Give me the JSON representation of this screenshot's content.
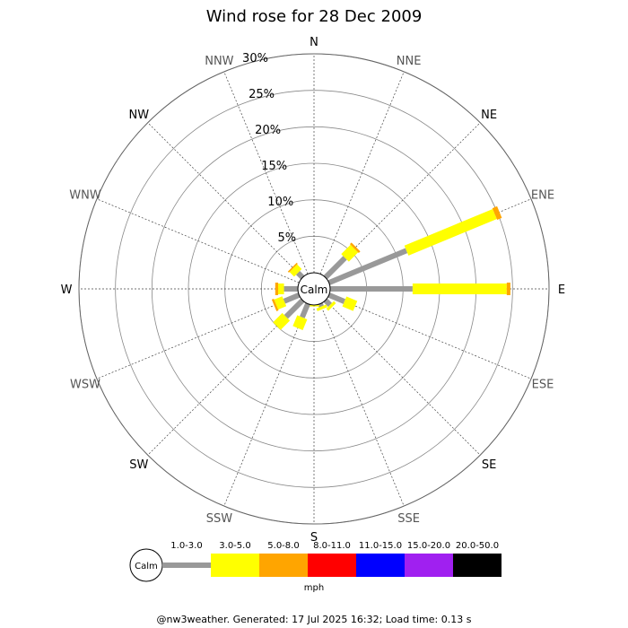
{
  "chart_data": {
    "type": "wind-rose",
    "title": "Wind rose for 28 Dec 2009",
    "center_label": "Calm",
    "unit": "mph",
    "footer": "@nw3weather. Generated: 17 Jul 2025 16:32; Load time: 0.13 s",
    "radial_max": 30,
    "radial_ticks": [
      5,
      10,
      15,
      20,
      25,
      30
    ],
    "radial_tick_labels": [
      "5%",
      "10%",
      "15%",
      "20%",
      "25%",
      "30%"
    ],
    "directions": [
      "N",
      "NNE",
      "NE",
      "ENE",
      "E",
      "ESE",
      "SE",
      "SSE",
      "S",
      "SSW",
      "SW",
      "WSW",
      "W",
      "WNW",
      "NW",
      "NNW"
    ],
    "bins": [
      "1.0-3.0",
      "3.0-5.0",
      "5.0-8.0",
      "8.0-11.0",
      "11.0-15.0",
      "15.0-20.0",
      "20.0-50.0"
    ],
    "bin_colors": [
      "#999999",
      "#ffff00",
      "#ffa500",
      "#ff0000",
      "#0000ff",
      "#a020f0",
      "#000000"
    ],
    "series": [
      {
        "direction": "N",
        "values": [
          0,
          0,
          0,
          0,
          0,
          0,
          0
        ]
      },
      {
        "direction": "NNE",
        "values": [
          0,
          0,
          0,
          0,
          0,
          0,
          0
        ]
      },
      {
        "direction": "NE",
        "values": [
          3.8,
          1.8,
          0.3,
          0,
          0,
          0,
          0
        ]
      },
      {
        "direction": "ENE",
        "values": [
          11.5,
          13.1,
          0.7,
          0,
          0,
          0,
          0
        ]
      },
      {
        "direction": "E",
        "values": [
          11.3,
          12.9,
          0.5,
          0,
          0,
          0,
          0
        ]
      },
      {
        "direction": "ESE",
        "values": [
          2.3,
          1.6,
          0,
          0,
          0,
          0,
          0
        ]
      },
      {
        "direction": "SE",
        "values": [
          0.9,
          0.4,
          0,
          0,
          0,
          0,
          0
        ]
      },
      {
        "direction": "SSE",
        "values": [
          0.4,
          0.4,
          0,
          0,
          0,
          0,
          0
        ]
      },
      {
        "direction": "S",
        "values": [
          0,
          0.2,
          0,
          0,
          0,
          0,
          0
        ]
      },
      {
        "direction": "SSW",
        "values": [
          2.0,
          1.6,
          0,
          0,
          0,
          0,
          0
        ]
      },
      {
        "direction": "SW",
        "values": [
          3.2,
          1.8,
          0,
          0,
          0,
          0,
          0
        ]
      },
      {
        "direction": "WSW",
        "values": [
          2.2,
          1.2,
          0.3,
          0,
          0,
          0,
          0
        ]
      },
      {
        "direction": "W",
        "values": [
          1.9,
          0.8,
          0.4,
          0,
          0,
          0,
          0
        ]
      },
      {
        "direction": "WNW",
        "values": [
          0,
          0,
          0,
          0,
          0,
          0,
          0
        ]
      },
      {
        "direction": "NW",
        "values": [
          0.9,
          0.9,
          0.2,
          0,
          0,
          0,
          0
        ]
      },
      {
        "direction": "NNW",
        "values": [
          0,
          0,
          0,
          0,
          0,
          0,
          0
        ]
      }
    ]
  }
}
